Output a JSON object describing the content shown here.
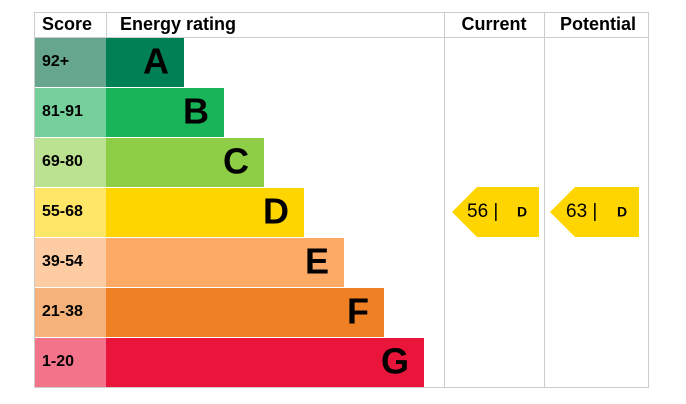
{
  "header": {
    "score": "Score",
    "rating": "Energy rating",
    "current": "Current",
    "potential": "Potential"
  },
  "bands": [
    {
      "score": "92+",
      "letter": "A"
    },
    {
      "score": "81-91",
      "letter": "B"
    },
    {
      "score": "69-80",
      "letter": "C"
    },
    {
      "score": "55-68",
      "letter": "D"
    },
    {
      "score": "39-54",
      "letter": "E"
    },
    {
      "score": "21-38",
      "letter": "F"
    },
    {
      "score": "1-20",
      "letter": "G"
    }
  ],
  "current": {
    "score": "56 |",
    "letter": "D"
  },
  "potential": {
    "score": "63 |",
    "letter": "D"
  }
}
